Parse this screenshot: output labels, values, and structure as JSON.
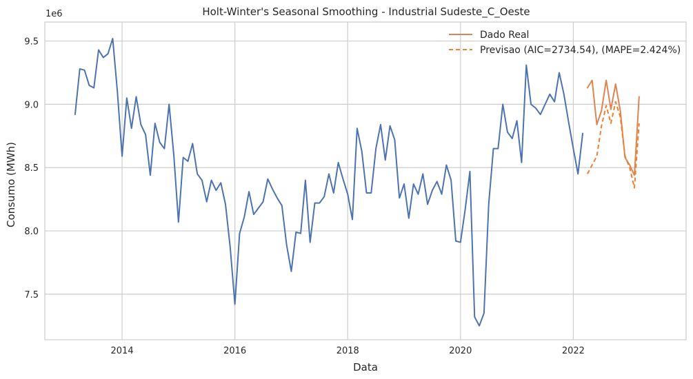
{
  "chart_data": {
    "type": "line",
    "title": "Holt-Winter's Seasonal Smoothing - Industrial Sudeste_C_Oeste",
    "xlabel": "Data",
    "ylabel": "Consumo (MWh)",
    "y_offset_label": "1e6",
    "xlim": [
      2012.63,
      2024.0
    ],
    "ylim": [
      7.14,
      9.65
    ],
    "x_ticks": [
      2014,
      2016,
      2018,
      2020,
      2022
    ],
    "x_tick_labels": [
      "2014",
      "2016",
      "2018",
      "2020",
      "2022"
    ],
    "y_ticks": [
      7.5,
      8.0,
      8.5,
      9.0,
      9.5
    ],
    "y_tick_labels": [
      "7.5",
      "8.0",
      "8.5",
      "9.0",
      "9.5"
    ],
    "grid": true,
    "legend_position": "top-right",
    "colors": {
      "historical": "#4c72b0",
      "actual": "#dd8452",
      "forecast": "#f07f30",
      "grid": "#cccccc",
      "axes_edge": "#cccccc"
    },
    "series": [
      {
        "key": "historical",
        "style": "solid",
        "x": [
          "2013-03",
          "2013-04",
          "2013-05",
          "2013-06",
          "2013-07",
          "2013-08",
          "2013-09",
          "2013-10",
          "2013-11",
          "2013-12",
          "2014-01",
          "2014-02",
          "2014-03",
          "2014-04",
          "2014-05",
          "2014-06",
          "2014-07",
          "2014-08",
          "2014-09",
          "2014-10",
          "2014-11",
          "2014-12",
          "2015-01",
          "2015-02",
          "2015-03",
          "2015-04",
          "2015-05",
          "2015-06",
          "2015-07",
          "2015-08",
          "2015-09",
          "2015-10",
          "2015-11",
          "2015-12",
          "2016-01",
          "2016-02",
          "2016-03",
          "2016-04",
          "2016-05",
          "2016-06",
          "2016-07",
          "2016-08",
          "2016-09",
          "2016-10",
          "2016-11",
          "2016-12",
          "2017-01",
          "2017-02",
          "2017-03",
          "2017-04",
          "2017-05",
          "2017-06",
          "2017-07",
          "2017-08",
          "2017-09",
          "2017-10",
          "2017-11",
          "2017-12",
          "2018-01",
          "2018-02",
          "2018-03",
          "2018-04",
          "2018-05",
          "2018-06",
          "2018-07",
          "2018-08",
          "2018-09",
          "2018-10",
          "2018-11",
          "2018-12",
          "2019-01",
          "2019-02",
          "2019-03",
          "2019-04",
          "2019-05",
          "2019-06",
          "2019-07",
          "2019-08",
          "2019-09",
          "2019-10",
          "2019-11",
          "2019-12",
          "2020-01",
          "2020-02",
          "2020-03",
          "2020-04",
          "2020-05",
          "2020-06",
          "2020-07",
          "2020-08",
          "2020-09",
          "2020-10",
          "2020-11",
          "2020-12",
          "2021-01",
          "2021-02",
          "2021-03",
          "2021-04",
          "2021-05",
          "2021-06",
          "2021-07",
          "2021-08",
          "2021-09",
          "2021-10",
          "2021-11",
          "2021-12",
          "2022-01",
          "2022-02",
          "2022-03"
        ],
        "y": [
          8.92,
          9.28,
          9.27,
          9.15,
          9.13,
          9.43,
          9.37,
          9.4,
          9.52,
          9.1,
          8.59,
          9.05,
          8.81,
          9.06,
          8.84,
          8.76,
          8.44,
          8.85,
          8.7,
          8.65,
          9.0,
          8.6,
          8.07,
          8.58,
          8.55,
          8.69,
          8.45,
          8.4,
          8.23,
          8.4,
          8.32,
          8.38,
          8.21,
          7.87,
          7.42,
          7.98,
          8.11,
          8.31,
          8.13,
          8.18,
          8.23,
          8.41,
          8.33,
          8.26,
          8.2,
          7.89,
          7.68,
          7.99,
          7.98,
          8.4,
          7.91,
          8.22,
          8.22,
          8.27,
          8.45,
          8.3,
          8.54,
          8.41,
          8.29,
          8.09,
          8.81,
          8.63,
          8.3,
          8.3,
          8.65,
          8.84,
          8.56,
          8.83,
          8.72,
          8.26,
          8.37,
          8.1,
          8.37,
          8.29,
          8.45,
          8.21,
          8.32,
          8.39,
          8.29,
          8.52,
          8.4,
          7.92,
          7.91,
          8.17,
          8.47,
          7.32,
          7.25,
          7.35,
          8.21,
          8.65,
          8.65,
          9.0,
          8.78,
          8.73,
          8.87,
          8.54,
          9.31,
          9.0,
          8.97,
          8.92,
          9.0,
          9.08,
          9.02,
          9.25,
          9.08,
          8.86,
          8.65,
          8.45,
          8.77
        ]
      },
      {
        "key": "actual",
        "name": "Dado Real",
        "style": "solid",
        "x": [
          "2022-04",
          "2022-05",
          "2022-06",
          "2022-07",
          "2022-08",
          "2022-09",
          "2022-10",
          "2022-11",
          "2022-12",
          "2023-01",
          "2023-02",
          "2023-03"
        ],
        "y": [
          9.13,
          9.19,
          8.84,
          8.95,
          9.19,
          8.96,
          9.16,
          8.95,
          8.58,
          8.52,
          8.44,
          9.06
        ]
      },
      {
        "key": "forecast",
        "name": "Previsao (AIC=2734.54), (MAPE=2.424%)",
        "style": "dashed",
        "x": [
          "2022-04",
          "2022-05",
          "2022-06",
          "2022-07",
          "2022-08",
          "2022-09",
          "2022-10",
          "2022-11",
          "2022-12",
          "2023-01",
          "2023-02",
          "2023-03"
        ],
        "y": [
          8.45,
          8.52,
          8.59,
          8.83,
          8.99,
          8.85,
          9.02,
          8.9,
          8.59,
          8.5,
          8.34,
          8.85
        ]
      }
    ],
    "legend": [
      {
        "label": "Dado Real",
        "style": "solid",
        "color": "#dd8452"
      },
      {
        "label": "Previsao (AIC=2734.54), (MAPE=2.424%)",
        "style": "dashed",
        "color": "#f07f30"
      }
    ]
  }
}
